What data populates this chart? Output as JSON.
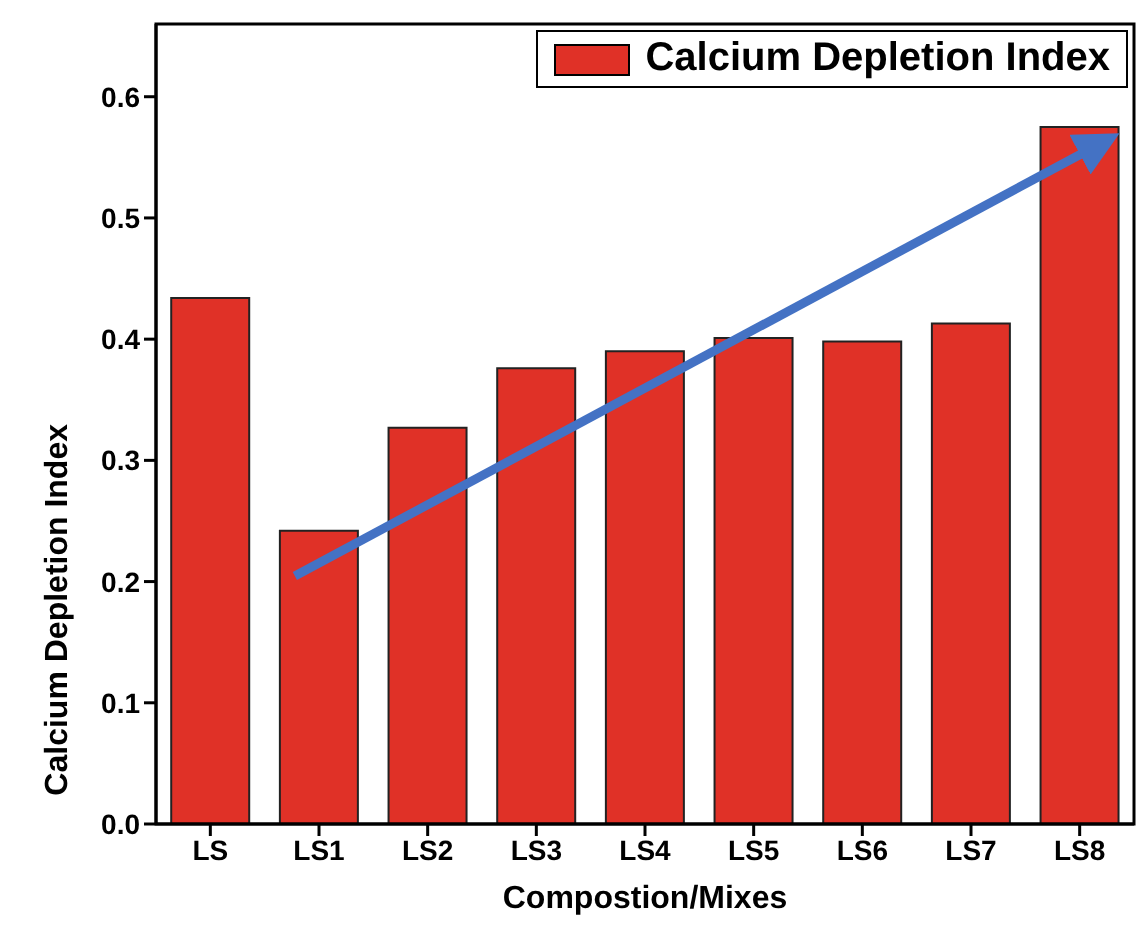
{
  "chart_data": {
    "type": "bar",
    "xlabel": "Compostion/Mixes",
    "ylabel": "Calcium Depletion Index",
    "categories": [
      "LS",
      "LS1",
      "LS2",
      "LS3",
      "LS4",
      "LS5",
      "LS6",
      "LS7",
      "LS8"
    ],
    "series": [
      {
        "name": "Calcium Depletion Index",
        "color": "#e03127",
        "values": [
          0.434,
          0.242,
          0.327,
          0.376,
          0.39,
          0.401,
          0.398,
          0.413,
          0.575
        ]
      }
    ],
    "ylim": [
      0,
      0.66
    ],
    "yticks": [
      {
        "value": 0,
        "label": "0.0"
      },
      {
        "value": 0.1,
        "label": "0.1"
      },
      {
        "value": 0.2,
        "label": "0.2"
      },
      {
        "value": 0.3,
        "label": "0.3"
      },
      {
        "value": 0.4,
        "label": "0.4"
      },
      {
        "value": 0.5,
        "label": "0.5"
      },
      {
        "value": 0.6,
        "label": "0.6"
      }
    ],
    "grid": false,
    "legend": "top right"
  }
}
